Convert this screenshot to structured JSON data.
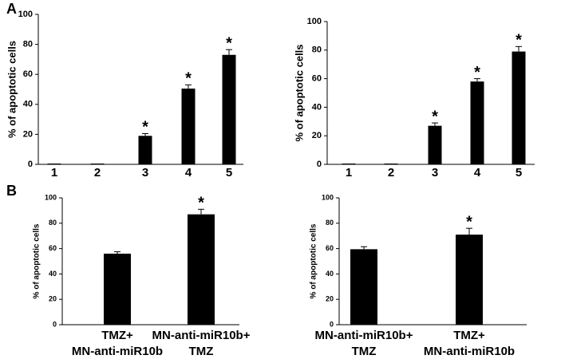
{
  "chart_data": [
    {
      "type": "bar",
      "panel": "A",
      "ylabel": "% of apoptotic cells",
      "categories": [
        "1",
        "2",
        "3",
        "4",
        "5"
      ],
      "values": [
        0,
        0,
        19,
        50.5,
        73
      ],
      "errors": [
        0,
        0,
        1.5,
        2.5,
        3.5
      ],
      "markers": [
        null,
        null,
        "*",
        "*",
        "*"
      ],
      "color": "#000000",
      "ylim": [
        0,
        100
      ],
      "yticks": [
        0,
        20,
        40,
        60,
        80,
        100
      ]
    },
    {
      "type": "bar",
      "ylabel": "% of apoptotic cells",
      "categories": [
        "1",
        "2",
        "3",
        "4",
        "5"
      ],
      "values": [
        0,
        0,
        27,
        58,
        79
      ],
      "errors": [
        0,
        0,
        2,
        2,
        3.5
      ],
      "markers": [
        null,
        null,
        "*",
        "*",
        "*"
      ],
      "color": "#000000",
      "ylim": [
        0,
        100
      ],
      "yticks": [
        0,
        20,
        40,
        60,
        80,
        100
      ]
    },
    {
      "type": "bar",
      "panel": "B",
      "ylabel": "% of apoptotic cells",
      "categories": [
        [
          "TMZ+",
          "MN-anti-miR10b"
        ],
        [
          "MN-anti-miR10b+",
          "TMZ"
        ]
      ],
      "values": [
        56,
        87
      ],
      "errors": [
        1.5,
        4
      ],
      "markers": [
        null,
        "*"
      ],
      "color": "#000000",
      "ylim": [
        0,
        100
      ],
      "yticks": [
        0,
        20,
        40,
        60,
        80,
        100
      ]
    },
    {
      "type": "bar",
      "ylabel": "% of apoptotic cells",
      "categories": [
        [
          "MN-anti-miR10b+",
          "TMZ"
        ],
        [
          "TMZ+",
          "MN-anti-miR10b"
        ]
      ],
      "values": [
        59.5,
        71
      ],
      "errors": [
        2,
        5
      ],
      "markers": [
        null,
        "*"
      ],
      "color": "#000000",
      "ylim": [
        0,
        100
      ],
      "yticks": [
        0,
        20,
        40,
        60,
        80,
        100
      ]
    }
  ]
}
